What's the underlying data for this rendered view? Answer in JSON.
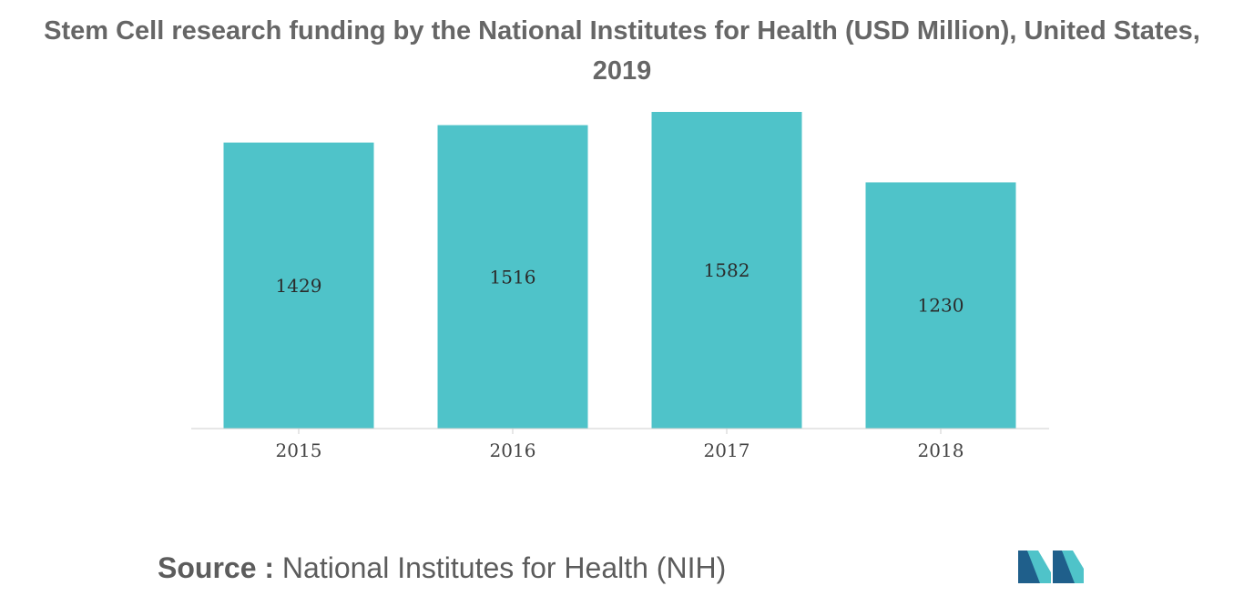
{
  "chart_data": {
    "type": "bar",
    "title": "Stem Cell research funding by the National Institutes for Health (USD Million), United States, 2019",
    "categories": [
      "2015",
      "2016",
      "2017",
      "2018"
    ],
    "values": [
      1429,
      1516,
      1582,
      1230
    ],
    "ylim": [
      0,
      1582
    ],
    "grid": false,
    "legend": "none",
    "colors": {
      "bar": "#4fc3c9",
      "axis": "#cfcfcf"
    }
  },
  "source": {
    "label": "Source :",
    "text": "National Institutes for Health (NIH)"
  },
  "logo": {
    "icon": "mordor-intelligence-logo-icon",
    "colors": [
      "#1f5f8b",
      "#4fc3c9"
    ]
  }
}
